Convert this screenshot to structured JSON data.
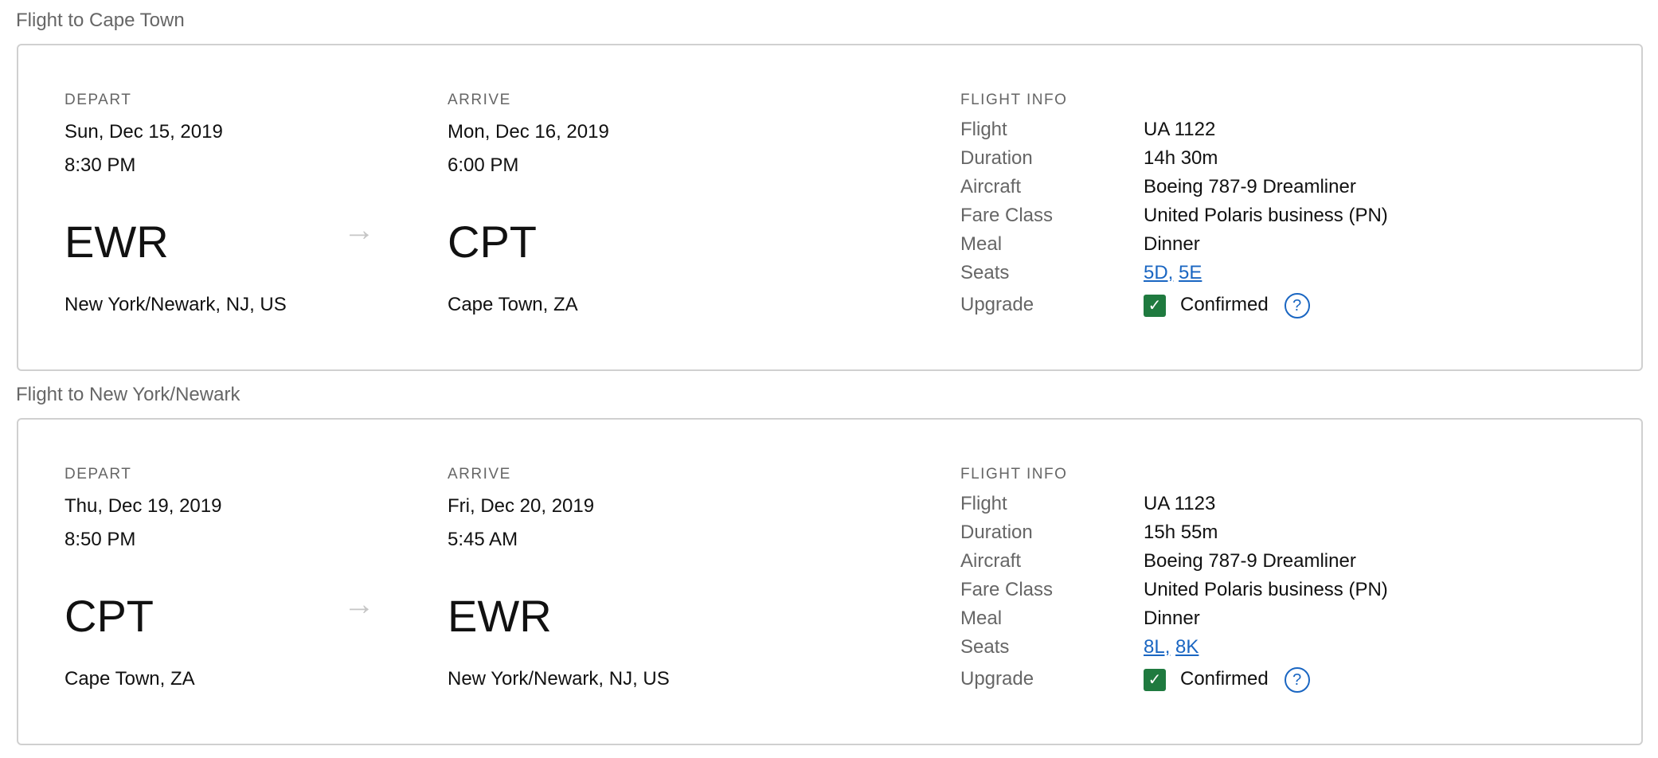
{
  "flights": [
    {
      "title": "Flight to Cape Town",
      "depart_label": "DEPART",
      "arrive_label": "ARRIVE",
      "info_label": "FLIGHT INFO",
      "depart": {
        "date": "Sun, Dec 15, 2019",
        "time": "8:30 PM",
        "code": "EWR",
        "city": "New York/Newark, NJ, US"
      },
      "arrive": {
        "date": "Mon, Dec 16, 2019",
        "time": "6:00 PM",
        "code": "CPT",
        "city": "Cape Town, ZA"
      },
      "info": {
        "flight_k": "Flight",
        "flight": "UA 1122",
        "duration_k": "Duration",
        "duration": "14h 30m",
        "aircraft_k": "Aircraft",
        "aircraft": "Boeing 787-9 Dreamliner",
        "fare_k": "Fare Class",
        "fare": "United Polaris business (PN)",
        "meal_k": "Meal",
        "meal": "Dinner",
        "seats_k": "Seats",
        "seat1": "5D,",
        "seat2": "5E",
        "upgrade_k": "Upgrade",
        "upgrade": "Confirmed"
      }
    },
    {
      "title": "Flight to New York/Newark",
      "depart_label": "DEPART",
      "arrive_label": "ARRIVE",
      "info_label": "FLIGHT INFO",
      "depart": {
        "date": "Thu, Dec 19, 2019",
        "time": "8:50 PM",
        "code": "CPT",
        "city": "Cape Town, ZA"
      },
      "arrive": {
        "date": "Fri, Dec 20, 2019",
        "time": "5:45 AM",
        "code": "EWR",
        "city": "New York/Newark, NJ, US"
      },
      "info": {
        "flight_k": "Flight",
        "flight": "UA 1123",
        "duration_k": "Duration",
        "duration": "15h 55m",
        "aircraft_k": "Aircraft",
        "aircraft": "Boeing 787-9 Dreamliner",
        "fare_k": "Fare Class",
        "fare": "United Polaris business (PN)",
        "meal_k": "Meal",
        "meal": "Dinner",
        "seats_k": "Seats",
        "seat1": "8L,",
        "seat2": "8K",
        "upgrade_k": "Upgrade",
        "upgrade": "Confirmed"
      }
    }
  ],
  "colors": {
    "link": "#1a66c2",
    "confirmed": "#1f7a3f"
  },
  "icons": {
    "arrow": "arrow-right-icon",
    "check": "checkbox-checked-icon",
    "help": "question-circle-icon"
  }
}
